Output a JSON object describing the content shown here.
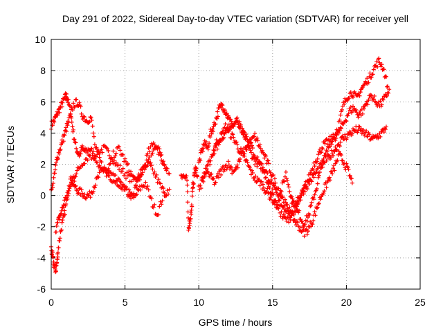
{
  "chart_data": {
    "type": "scatter",
    "title": "Day 291 of 2022, Sidereal Day-to-day VTEC variation (SDTVAR) for receiver yell",
    "xlabel": "GPS time / hours",
    "ylabel": "SDTVAR / TECUs",
    "xlim": [
      0,
      25
    ],
    "ylim": [
      -6,
      10
    ],
    "xticks": [
      0,
      5,
      10,
      15,
      20,
      25
    ],
    "yticks": [
      -6,
      -4,
      -2,
      0,
      2,
      4,
      6,
      8,
      10
    ],
    "xtick_labels": [
      "0",
      "5",
      "10",
      "15",
      "20",
      "25"
    ],
    "ytick_labels": [
      "-6",
      "-4",
      "-2",
      "0",
      "2",
      "4",
      "6",
      "8",
      "10"
    ],
    "grid": true,
    "marker": "+",
    "series": [
      {
        "name": "SDTVAR",
        "color": "#ff0000",
        "tracks": [
          {
            "x": [
              0.0,
              0.2,
              0.4,
              0.6,
              0.8,
              1.0,
              1.1,
              1.3,
              1.5,
              1.7,
              1.9,
              2.1,
              2.3,
              2.6,
              2.9,
              3.2,
              3.6,
              4.0,
              4.4,
              4.8,
              5.2,
              5.6,
              6.0,
              6.4,
              6.8,
              7.2,
              7.6,
              8.0
            ],
            "y": [
              4.5,
              4.8,
              5.2,
              5.6,
              6.0,
              6.4,
              6.2,
              5.4,
              4.0,
              3.0,
              2.6,
              3.0,
              2.8,
              3.0,
              2.6,
              2.8,
              3.0,
              2.6,
              2.0,
              1.6,
              1.2,
              1.0,
              1.4,
              2.0,
              2.4,
              3.2,
              2.0,
              1.4
            ]
          },
          {
            "x": [
              0.0,
              0.1,
              0.2,
              0.3,
              0.4,
              0.5,
              0.7,
              0.9,
              1.1,
              1.3,
              1.5,
              1.7,
              2.0,
              2.3,
              2.6,
              2.9,
              3.2,
              3.6,
              4.0,
              4.4,
              4.8,
              5.2,
              5.6,
              6.0,
              6.4,
              6.8,
              7.2,
              7.6,
              8.0
            ],
            "y": [
              -3.4,
              -4.0,
              -4.5,
              -4.8,
              -4.2,
              -3.2,
              -2.0,
              -1.2,
              0.0,
              1.0,
              0.8,
              0.4,
              0.2,
              0.0,
              0.0,
              0.6,
              1.2,
              1.8,
              1.4,
              1.0,
              0.6,
              0.2,
              -0.2,
              0.4,
              0.8,
              -0.4,
              -1.2,
              0.0,
              0.4
            ]
          },
          {
            "x": [
              0.0,
              0.2,
              0.4,
              0.6,
              0.8,
              1.0,
              1.2,
              1.5,
              1.8,
              2.1,
              2.4,
              2.7,
              3.0,
              3.4,
              3.8,
              4.2,
              4.6,
              5.0,
              5.4,
              5.8,
              6.2,
              6.6,
              7.0,
              7.4,
              7.8
            ],
            "y": [
              0.2,
              1.2,
              2.4,
              3.0,
              3.6,
              4.2,
              4.8,
              5.8,
              6.0,
              5.2,
              4.8,
              5.0,
              3.0,
              2.0,
              1.4,
              1.0,
              0.8,
              0.4,
              0.0,
              0.6,
              1.6,
              2.0,
              1.4,
              0.6,
              0.0
            ]
          },
          {
            "x": [
              0.3,
              0.5,
              0.7,
              0.9,
              1.2,
              1.5,
              1.8,
              2.2,
              2.6,
              3.0,
              3.4,
              3.8,
              4.2,
              4.6,
              5.0,
              5.4,
              5.8,
              6.2,
              6.6,
              7.0,
              7.4,
              7.8
            ],
            "y": [
              -2.2,
              -1.6,
              -1.0,
              -0.4,
              0.4,
              1.2,
              1.6,
              2.2,
              2.6,
              2.4,
              1.6,
              1.4,
              2.6,
              3.0,
              2.2,
              1.4,
              0.8,
              1.6,
              2.8,
              3.4,
              2.6,
              1.6
            ]
          },
          {
            "x": [
              8.8,
              9.0,
              9.2,
              9.3,
              9.4,
              9.5,
              9.6,
              9.7,
              9.8,
              9.9
            ],
            "y": [
              1.4,
              1.2,
              1.0,
              -2.0,
              -1.6,
              -1.0,
              0.6,
              1.4,
              1.8,
              1.2
            ]
          },
          {
            "x": [
              10.0,
              10.2,
              10.4,
              10.6,
              10.8,
              11.0,
              11.2,
              11.4,
              11.6,
              11.8,
              12.0,
              12.3,
              12.6,
              12.9,
              13.2,
              13.5,
              13.8,
              14.1,
              14.4,
              14.7,
              15.0,
              15.3,
              15.6,
              15.9,
              16.2,
              16.5,
              16.8,
              17.1,
              17.4,
              17.7,
              18.0,
              18.3,
              18.6,
              18.9,
              19.2,
              19.5,
              19.8,
              20.1,
              20.4,
              20.7,
              21.0,
              21.3,
              21.6,
              21.9,
              22.2,
              22.5,
              22.8
            ],
            "y": [
              2.0,
              2.8,
              3.4,
              3.0,
              4.0,
              4.4,
              5.0,
              5.6,
              5.8,
              5.4,
              5.0,
              4.4,
              4.8,
              4.2,
              3.4,
              2.8,
              2.2,
              2.0,
              1.6,
              0.8,
              0.0,
              -0.6,
              0.4,
              1.4,
              0.2,
              -0.8,
              -1.2,
              -1.8,
              -1.4,
              -0.4,
              0.6,
              1.8,
              2.6,
              3.4,
              3.8,
              4.6,
              5.8,
              6.4,
              6.6,
              6.2,
              6.8,
              7.2,
              7.6,
              8.2,
              8.6,
              8.2,
              7.0
            ]
          },
          {
            "x": [
              10.0,
              10.3,
              10.6,
              10.9,
              11.2,
              11.5,
              11.8,
              12.1,
              12.4,
              12.7,
              13.0,
              13.3,
              13.6,
              13.9,
              14.2,
              14.5,
              14.8,
              15.1,
              15.4,
              15.7,
              16.0,
              16.3,
              16.6,
              16.9,
              17.2,
              17.5,
              17.8,
              18.1,
              18.4,
              18.7,
              19.0,
              19.3,
              19.6,
              19.9,
              20.2,
              20.5,
              20.8,
              21.1,
              21.4,
              21.7,
              22.0,
              22.3,
              22.6,
              22.9
            ],
            "y": [
              0.4,
              1.0,
              1.8,
              2.6,
              3.4,
              3.8,
              4.4,
              4.0,
              3.6,
              3.0,
              2.6,
              2.0,
              1.4,
              1.0,
              0.8,
              0.4,
              0.0,
              -0.4,
              -0.8,
              -1.4,
              -1.6,
              -1.2,
              -0.8,
              -0.2,
              0.6,
              1.2,
              2.0,
              2.6,
              3.2,
              3.4,
              3.6,
              3.8,
              4.2,
              4.8,
              5.4,
              5.6,
              5.2,
              5.4,
              6.0,
              6.4,
              6.0,
              5.8,
              6.2,
              6.8
            ]
          },
          {
            "x": [
              10.2,
              10.5,
              10.8,
              11.1,
              11.4,
              11.7,
              12.0,
              12.3,
              12.6,
              12.9,
              13.2,
              13.5,
              13.8,
              14.1,
              14.4,
              14.7,
              15.0,
              15.3,
              15.6,
              15.9,
              16.2,
              16.5,
              16.8,
              17.1,
              17.4,
              17.7,
              18.0,
              18.3,
              18.6,
              18.9,
              19.2,
              19.5,
              19.8,
              20.1,
              20.4
            ],
            "y": [
              1.0,
              1.6,
              1.2,
              0.8,
              1.4,
              1.8,
              2.0,
              1.6,
              1.8,
              2.6,
              3.0,
              3.4,
              3.8,
              3.2,
              2.6,
              2.0,
              1.2,
              0.6,
              0.0,
              -0.6,
              -1.2,
              -1.6,
              -2.0,
              -2.4,
              -2.2,
              -1.6,
              -0.8,
              0.0,
              0.6,
              1.2,
              1.8,
              2.6,
              2.2,
              1.6,
              0.8
            ]
          },
          {
            "x": [
              11.0,
              11.3,
              11.6,
              11.9,
              12.2,
              12.5,
              12.8,
              13.1,
              13.4,
              13.7,
              14.0,
              14.3,
              14.6,
              14.9,
              15.2,
              15.5,
              15.8,
              16.1,
              16.4,
              16.7,
              17.0,
              17.3,
              17.6,
              17.9,
              18.2,
              18.5,
              18.8,
              19.1,
              19.4,
              19.7,
              20.0,
              20.3,
              20.6,
              20.9,
              21.2,
              21.5,
              21.8,
              22.1,
              22.4,
              22.7
            ],
            "y": [
              2.8,
              3.2,
              3.8,
              4.2,
              4.6,
              4.8,
              4.4,
              4.0,
              3.6,
              2.8,
              2.2,
              1.8,
              1.4,
              0.8,
              0.2,
              -0.4,
              -0.8,
              -1.0,
              -0.6,
              -0.2,
              0.2,
              0.6,
              1.0,
              1.4,
              1.8,
              2.2,
              2.4,
              2.8,
              3.2,
              3.6,
              3.8,
              4.0,
              4.2,
              4.2,
              4.0,
              3.8,
              3.6,
              3.8,
              4.0,
              4.4
            ]
          }
        ]
      }
    ]
  }
}
